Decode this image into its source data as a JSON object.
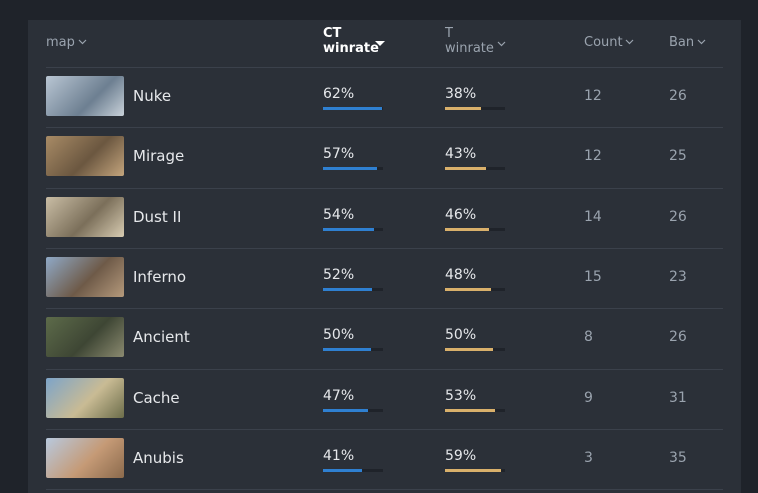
{
  "table": {
    "header": {
      "map": "map",
      "ct": "CT winrate",
      "t": "T winrate",
      "count": "Count",
      "ban": "Ban"
    },
    "rows": [
      {
        "map": "Nuke",
        "ct": {
          "value": 62,
          "label": "62%"
        },
        "t": {
          "value": 38,
          "label": "38%"
        },
        "count": "12",
        "ban": "26"
      },
      {
        "map": "Mirage",
        "ct": {
          "value": 57,
          "label": "57%"
        },
        "t": {
          "value": 43,
          "label": "43%"
        },
        "count": "12",
        "ban": "25"
      },
      {
        "map": "Dust II",
        "ct": {
          "value": 54,
          "label": "54%"
        },
        "t": {
          "value": 46,
          "label": "46%"
        },
        "count": "14",
        "ban": "26"
      },
      {
        "map": "Inferno",
        "ct": {
          "value": 52,
          "label": "52%"
        },
        "t": {
          "value": 48,
          "label": "48%"
        },
        "count": "15",
        "ban": "23"
      },
      {
        "map": "Ancient",
        "ct": {
          "value": 50,
          "label": "50%"
        },
        "t": {
          "value": 50,
          "label": "50%"
        },
        "count": "8",
        "ban": "26"
      },
      {
        "map": "Cache",
        "ct": {
          "value": 47,
          "label": "47%"
        },
        "t": {
          "value": 53,
          "label": "53%"
        },
        "count": "9",
        "ban": "31"
      },
      {
        "map": "Anubis",
        "ct": {
          "value": 41,
          "label": "41%"
        },
        "t": {
          "value": 59,
          "label": "59%"
        },
        "count": "3",
        "ban": "35"
      }
    ],
    "colors": {
      "ct": "#2f80d1",
      "t": "#d9b06b"
    }
  }
}
